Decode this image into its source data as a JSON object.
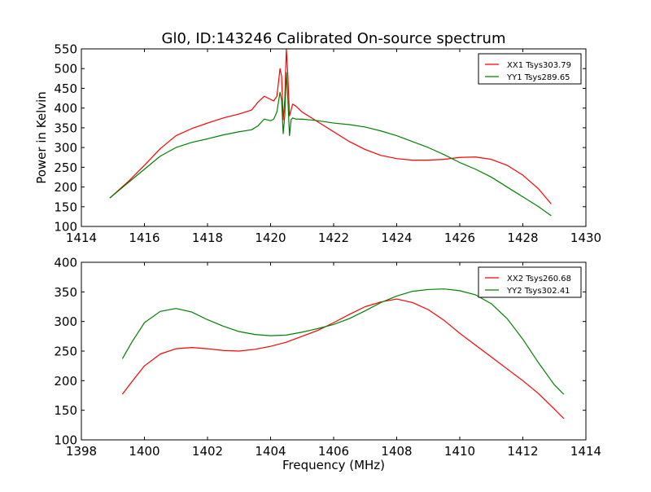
{
  "figure": {
    "title": "Gl0, ID:143246 Calibrated On-source spectrum"
  },
  "chart_data": [
    {
      "type": "line",
      "title": "Gl0, ID:143246 Calibrated On-source spectrum",
      "xlabel": "",
      "ylabel": "Power in Kelvin",
      "xlim": [
        1414,
        1430
      ],
      "ylim": [
        100,
        550
      ],
      "xticks": [
        "1414",
        "1416",
        "1418",
        "1420",
        "1422",
        "1424",
        "1426",
        "1428",
        "1430"
      ],
      "yticks": [
        "100",
        "150",
        "200",
        "250",
        "300",
        "350",
        "400",
        "450",
        "500",
        "550"
      ],
      "grid": false,
      "legend_position": "top-right",
      "series": [
        {
          "name": "XX1 Tsys303.79",
          "color": "#ff0000",
          "x": [
            1414.9,
            1415.5,
            1416,
            1416.5,
            1417,
            1417.5,
            1418,
            1418.5,
            1419,
            1419.4,
            1419.6,
            1419.8,
            1420.0,
            1420.1,
            1420.2,
            1420.3,
            1420.35,
            1420.4,
            1420.45,
            1420.5,
            1420.55,
            1420.6,
            1420.65,
            1420.7,
            1420.8,
            1421,
            1421.5,
            1422,
            1422.5,
            1423,
            1423.5,
            1424,
            1424.5,
            1425,
            1425.5,
            1426,
            1426.5,
            1427,
            1427.5,
            1428,
            1428.5,
            1428.9
          ],
          "y": [
            172,
            215,
            255,
            297,
            330,
            348,
            362,
            375,
            385,
            395,
            415,
            430,
            422,
            418,
            430,
            500,
            480,
            370,
            420,
            550,
            480,
            380,
            395,
            410,
            405,
            390,
            365,
            340,
            315,
            295,
            280,
            272,
            268,
            268,
            270,
            275,
            276,
            270,
            255,
            230,
            195,
            157
          ]
        },
        {
          "name": "YY1 Tsys289.65",
          "color": "#008000",
          "x": [
            1414.9,
            1415.5,
            1416,
            1416.5,
            1417,
            1417.5,
            1418,
            1418.5,
            1419,
            1419.4,
            1419.6,
            1419.8,
            1420.0,
            1420.1,
            1420.2,
            1420.3,
            1420.35,
            1420.4,
            1420.45,
            1420.5,
            1420.55,
            1420.6,
            1420.65,
            1420.7,
            1420.8,
            1421,
            1421.5,
            1422,
            1422.5,
            1423,
            1423.5,
            1424,
            1424.5,
            1425,
            1425.5,
            1426,
            1426.5,
            1427,
            1427.5,
            1428,
            1428.5,
            1428.9
          ],
          "y": [
            172,
            212,
            245,
            278,
            300,
            313,
            322,
            332,
            340,
            345,
            355,
            372,
            368,
            372,
            390,
            440,
            420,
            335,
            380,
            490,
            420,
            330,
            370,
            375,
            372,
            372,
            368,
            362,
            358,
            352,
            342,
            330,
            315,
            300,
            282,
            262,
            245,
            225,
            200,
            175,
            150,
            127
          ]
        }
      ]
    },
    {
      "type": "line",
      "title": "",
      "xlabel": "Frequency (MHz)",
      "ylabel": "",
      "xlim": [
        1398,
        1414
      ],
      "ylim": [
        100,
        400
      ],
      "xticks": [
        "1398",
        "1400",
        "1402",
        "1404",
        "1406",
        "1408",
        "1410",
        "1412",
        "1414"
      ],
      "yticks": [
        "100",
        "150",
        "200",
        "250",
        "300",
        "350",
        "400"
      ],
      "grid": false,
      "legend_position": "top-right",
      "series": [
        {
          "name": "XX2 Tsys260.68",
          "color": "#ff0000",
          "x": [
            1399.3,
            1399.6,
            1400,
            1400.5,
            1401,
            1401.5,
            1402,
            1402.5,
            1403,
            1403.5,
            1404,
            1404.5,
            1405,
            1405.5,
            1406,
            1406.5,
            1407,
            1407.5,
            1408,
            1408.5,
            1409,
            1409.5,
            1410,
            1410.5,
            1411,
            1411.5,
            1412,
            1412.5,
            1413,
            1413.3
          ],
          "y": [
            177,
            198,
            225,
            245,
            254,
            256,
            254,
            251,
            250,
            253,
            258,
            265,
            275,
            285,
            298,
            312,
            325,
            333,
            338,
            332,
            320,
            302,
            280,
            260,
            240,
            220,
            200,
            178,
            152,
            136
          ]
        },
        {
          "name": "YY2 Tsys302.41",
          "color": "#008000",
          "x": [
            1399.3,
            1399.6,
            1400,
            1400.5,
            1401,
            1401.5,
            1402,
            1402.5,
            1403,
            1403.5,
            1404,
            1404.5,
            1405,
            1405.5,
            1406,
            1406.5,
            1407,
            1407.5,
            1408,
            1408.5,
            1409,
            1409.5,
            1410,
            1410.5,
            1411,
            1411.5,
            1412,
            1412.5,
            1413,
            1413.3
          ],
          "y": [
            237,
            265,
            298,
            317,
            322,
            316,
            303,
            292,
            283,
            278,
            276,
            277,
            282,
            288,
            295,
            305,
            318,
            332,
            343,
            351,
            354,
            355,
            352,
            345,
            330,
            305,
            270,
            230,
            193,
            177
          ]
        }
      ]
    }
  ]
}
